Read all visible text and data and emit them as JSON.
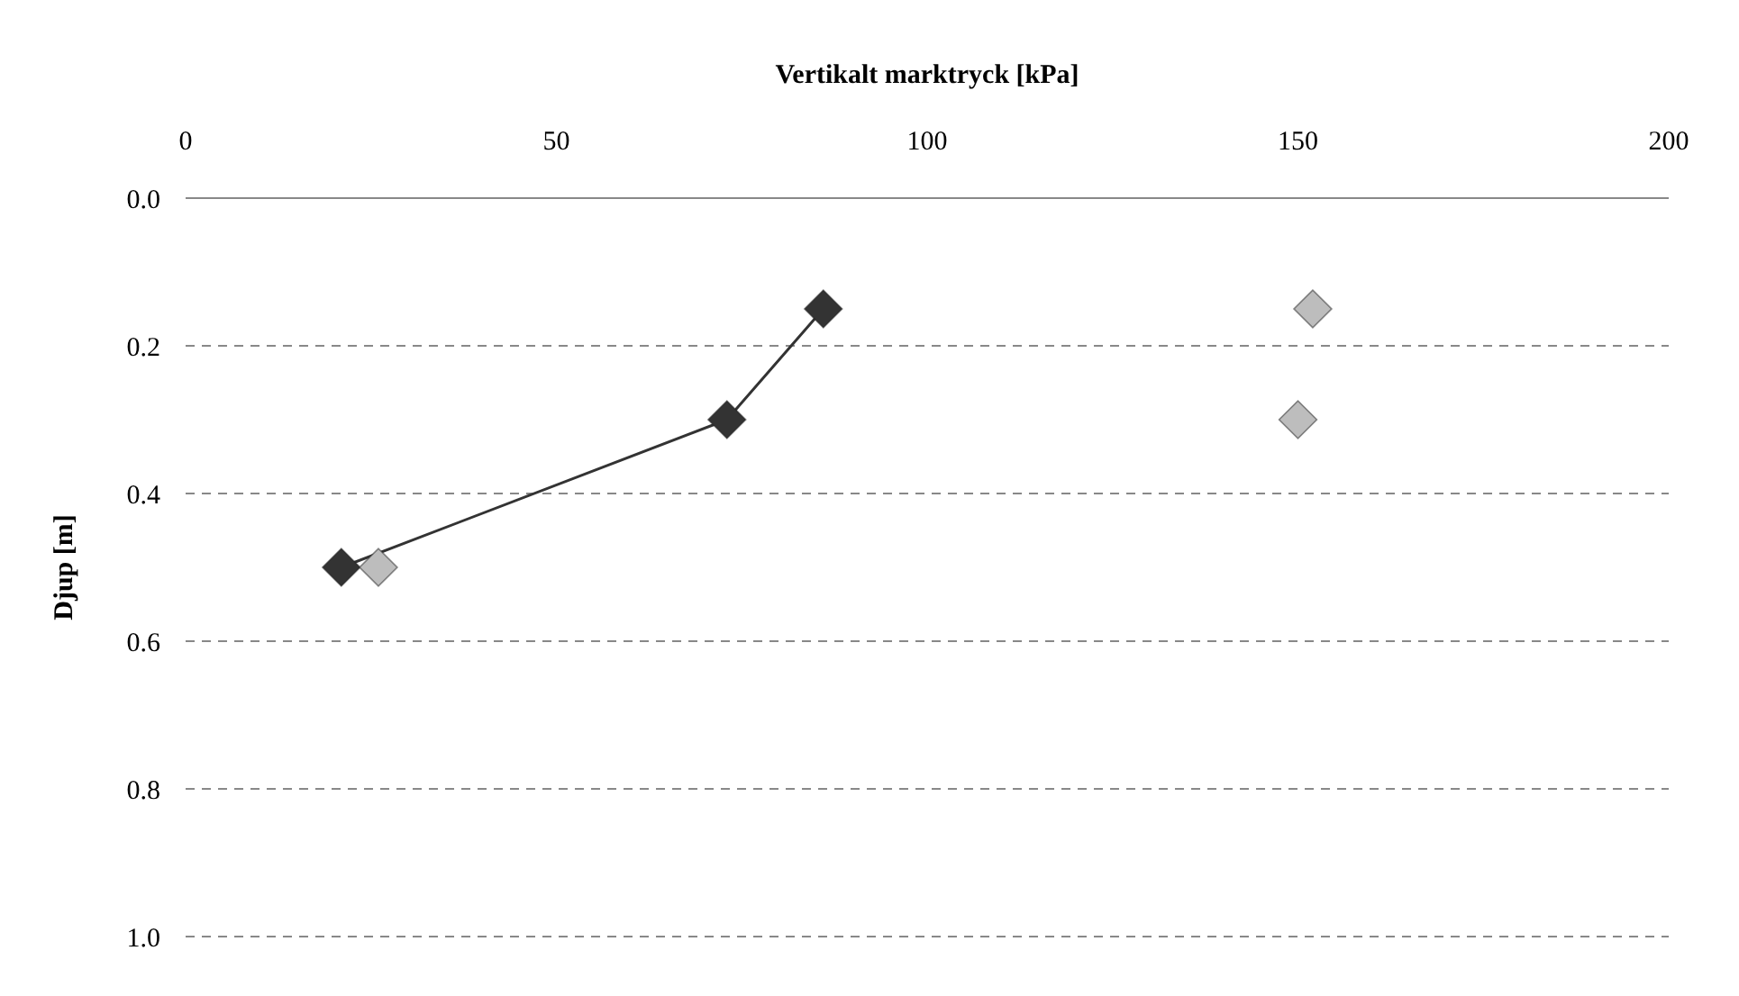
{
  "chart_data": {
    "type": "line",
    "xlabel": "Vertikalt marktryck [kPa]",
    "ylabel": "Djup [m]",
    "xlim": [
      0,
      200
    ],
    "xticks": [
      0,
      50,
      100,
      150,
      200
    ],
    "ylim": [
      1.0,
      0.0
    ],
    "yticks": [
      {
        "value": 0,
        "label": "0.0"
      },
      {
        "value": 0.2,
        "label": "0.2"
      },
      {
        "value": 0.4,
        "label": "0.4"
      },
      {
        "value": 0.6,
        "label": "0.6"
      },
      {
        "value": 0.8,
        "label": "0.8"
      },
      {
        "value": 1,
        "label": "1.0"
      }
    ],
    "grid": "y",
    "marker": "diamond",
    "series": [
      {
        "color": "#333333",
        "x": [
          21,
          73,
          86
        ],
        "values": [
          0.5,
          0.3,
          0.15
        ]
      },
      {
        "type": "scatter",
        "color": "#bdbdbd",
        "x": [
          26,
          150,
          152
        ],
        "values": [
          0.5,
          0.3,
          0.15
        ]
      }
    ]
  }
}
